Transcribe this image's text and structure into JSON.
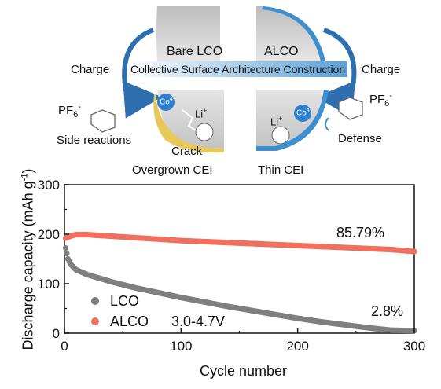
{
  "schematic": {
    "bare_label": "Bare LCO",
    "alco_label": "ALCO",
    "banner": "Collective Surface Architecture Construction",
    "charge_left": "Charge",
    "charge_right": "Charge",
    "pf6_left": "PF",
    "pf6_right": "PF",
    "pf6_sub": "6",
    "pf6_sup": "-",
    "side_reactions": "Side reactions",
    "crack": "Crack",
    "overgrown_cei": "Overgrown CEI",
    "thin_cei": "Thin CEI",
    "defense": "Defense",
    "co_ion": "Co",
    "co_charge": "4+",
    "li_ion": "Li",
    "li_charge": "+",
    "colors": {
      "lco_gray": "#c9c9c9",
      "alco_blue": "#3d8fd0",
      "arrow_blue": "#2f6fb0",
      "cei_yellow": "#e8c85a"
    }
  },
  "chart_data": {
    "type": "scatter",
    "xlabel": "Cycle number",
    "ylabel_main": "Discharge capacity (mAh g",
    "ylabel_sup": "-1",
    "ylabel_end": ")",
    "xlim": [
      0,
      300
    ],
    "ylim": [
      0,
      300
    ],
    "x_ticks": [
      "0",
      "100",
      "200",
      "300"
    ],
    "y_ticks": [
      "0",
      "100",
      "200",
      "300"
    ],
    "legend_position": "bottom-left",
    "condition": "3.0-4.7V",
    "annotations": {
      "alco_retention": "85.79%",
      "lco_retention": "2.8%"
    },
    "series": [
      {
        "name": "LCO",
        "color": "#7f7f7f",
        "points": [
          [
            1,
            172
          ],
          [
            3,
            150
          ],
          [
            5,
            140
          ],
          [
            10,
            128
          ],
          [
            20,
            118
          ],
          [
            40,
            104
          ],
          [
            60,
            92
          ],
          [
            80,
            82
          ],
          [
            100,
            72
          ],
          [
            120,
            63
          ],
          [
            140,
            54
          ],
          [
            160,
            46
          ],
          [
            180,
            38
          ],
          [
            200,
            30
          ],
          [
            220,
            23
          ],
          [
            240,
            17
          ],
          [
            260,
            11
          ],
          [
            280,
            6
          ],
          [
            300,
            5
          ]
        ]
      },
      {
        "name": "ALCO",
        "color": "#f07060",
        "points": [
          [
            1,
            192
          ],
          [
            5,
            196
          ],
          [
            10,
            199
          ],
          [
            20,
            199
          ],
          [
            40,
            196
          ],
          [
            60,
            193
          ],
          [
            80,
            190
          ],
          [
            100,
            187
          ],
          [
            120,
            185
          ],
          [
            140,
            183
          ],
          [
            160,
            181
          ],
          [
            180,
            179
          ],
          [
            200,
            177
          ],
          [
            220,
            175
          ],
          [
            240,
            173
          ],
          [
            260,
            171
          ],
          [
            280,
            169
          ],
          [
            300,
            165
          ]
        ]
      }
    ]
  }
}
